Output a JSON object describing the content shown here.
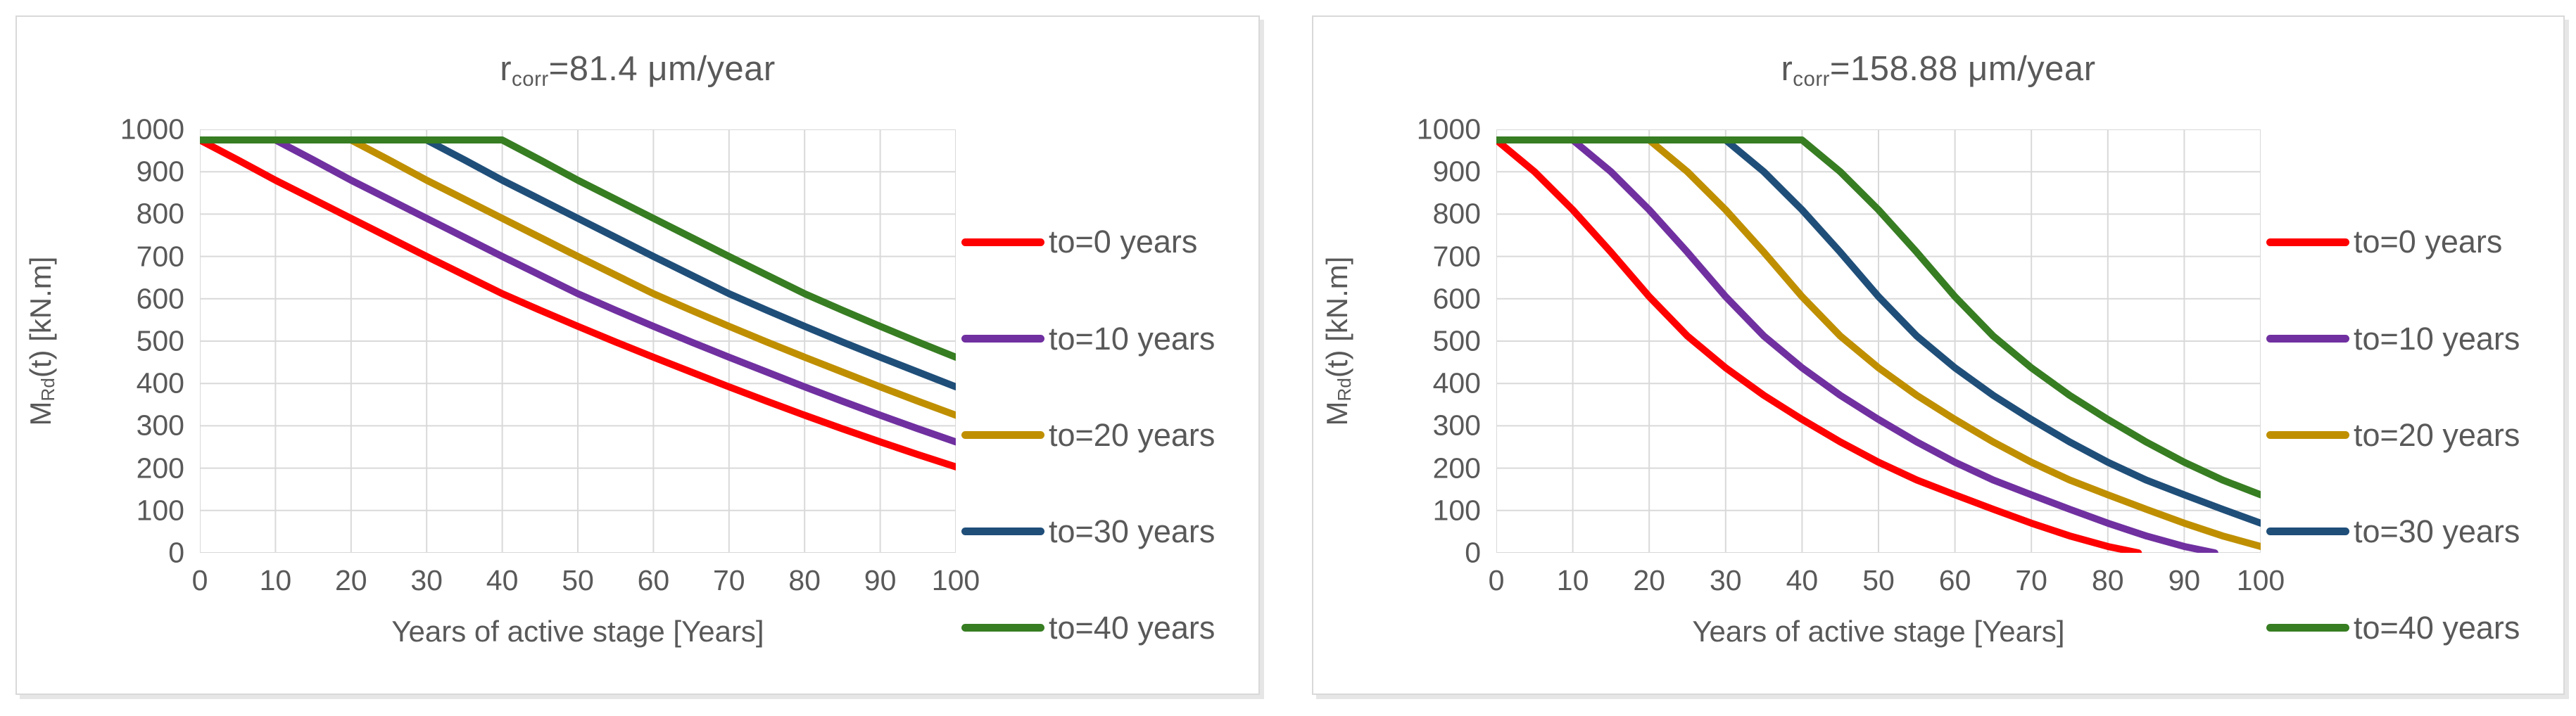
{
  "page": {
    "background": "#FFFFFF",
    "panel_border_color": "#D9D9D9"
  },
  "chart_data": [
    {
      "type": "line",
      "title": "r_corr=81.4 μm/year",
      "title_parts": {
        "base": "r",
        "sub": "corr",
        "rest": "=81.4 μm/year"
      },
      "xlabel": "Years of active stage [Years]",
      "ylabel": "M_Rd(t) [kN.m]",
      "ylabel_parts": {
        "base": "M",
        "sub": "Rd",
        "rest": "(t) [kN.m]"
      },
      "xlim": [
        0,
        100
      ],
      "ylim": [
        0,
        1000
      ],
      "x_ticks": [
        0,
        10,
        20,
        30,
        40,
        50,
        60,
        70,
        80,
        90,
        100
      ],
      "y_ticks": [
        0,
        100,
        200,
        300,
        400,
        500,
        600,
        700,
        800,
        900,
        1000
      ],
      "grid": true,
      "grid_color": "#D9D9D9",
      "axis_text_color": "#595959",
      "legend_position": "right",
      "series": [
        {
          "name": "to=0 years",
          "color": "#FF0000",
          "t0": 0,
          "points": [
            [
              0,
              975
            ],
            [
              5,
              928
            ],
            [
              10,
              880
            ],
            [
              15,
              835
            ],
            [
              20,
              790
            ],
            [
              25,
              745
            ],
            [
              30,
              700
            ],
            [
              35,
              656
            ],
            [
              40,
              612
            ],
            [
              45,
              573
            ],
            [
              50,
              535
            ],
            [
              55,
              498
            ],
            [
              60,
              462
            ],
            [
              65,
              427
            ],
            [
              70,
              392
            ],
            [
              75,
              358
            ],
            [
              80,
              325
            ],
            [
              85,
              293
            ],
            [
              90,
              262
            ],
            [
              95,
              232
            ],
            [
              100,
              203
            ]
          ]
        },
        {
          "name": "to=10 years",
          "color": "#7030A0",
          "t0": 10,
          "points": [
            [
              0,
              975
            ],
            [
              10,
              975
            ],
            [
              15,
              928
            ],
            [
              20,
              880
            ],
            [
              25,
              835
            ],
            [
              30,
              790
            ],
            [
              35,
              745
            ],
            [
              40,
              700
            ],
            [
              45,
              656
            ],
            [
              50,
              612
            ],
            [
              55,
              573
            ],
            [
              60,
              535
            ],
            [
              65,
              498
            ],
            [
              70,
              462
            ],
            [
              75,
              427
            ],
            [
              80,
              392
            ],
            [
              85,
              358
            ],
            [
              90,
              325
            ],
            [
              95,
              293
            ],
            [
              100,
              262
            ]
          ]
        },
        {
          "name": "to=20 years",
          "color": "#BF8F00",
          "t0": 20,
          "points": [
            [
              0,
              975
            ],
            [
              20,
              975
            ],
            [
              25,
              928
            ],
            [
              30,
              880
            ],
            [
              35,
              835
            ],
            [
              40,
              790
            ],
            [
              45,
              745
            ],
            [
              50,
              700
            ],
            [
              55,
              656
            ],
            [
              60,
              612
            ],
            [
              65,
              573
            ],
            [
              70,
              535
            ],
            [
              75,
              498
            ],
            [
              80,
              462
            ],
            [
              85,
              427
            ],
            [
              90,
              392
            ],
            [
              95,
              358
            ],
            [
              100,
              325
            ]
          ]
        },
        {
          "name": "to=30 years",
          "color": "#1F4E79",
          "t0": 30,
          "points": [
            [
              0,
              975
            ],
            [
              30,
              975
            ],
            [
              35,
              928
            ],
            [
              40,
              880
            ],
            [
              45,
              835
            ],
            [
              50,
              790
            ],
            [
              55,
              745
            ],
            [
              60,
              700
            ],
            [
              65,
              656
            ],
            [
              70,
              612
            ],
            [
              75,
              573
            ],
            [
              80,
              535
            ],
            [
              85,
              498
            ],
            [
              90,
              462
            ],
            [
              95,
              427
            ],
            [
              100,
              392
            ]
          ]
        },
        {
          "name": "to=40 years",
          "color": "#377D22",
          "t0": 40,
          "points": [
            [
              0,
              975
            ],
            [
              40,
              975
            ],
            [
              45,
              928
            ],
            [
              50,
              880
            ],
            [
              55,
              835
            ],
            [
              60,
              790
            ],
            [
              65,
              745
            ],
            [
              70,
              700
            ],
            [
              75,
              656
            ],
            [
              80,
              612
            ],
            [
              85,
              573
            ],
            [
              90,
              535
            ],
            [
              95,
              498
            ],
            [
              100,
              462
            ]
          ]
        }
      ]
    },
    {
      "type": "line",
      "title": "r_corr=158.88 μm/year",
      "title_parts": {
        "base": "r",
        "sub": "corr",
        "rest": "=158.88 μm/year"
      },
      "xlabel": "Years of active stage [Years]",
      "ylabel": "M_Rd(t) [kN.m]",
      "ylabel_parts": {
        "base": "M",
        "sub": "Rd",
        "rest": "(t) [kN.m]"
      },
      "xlim": [
        0,
        100
      ],
      "ylim": [
        0,
        1000
      ],
      "x_ticks": [
        0,
        10,
        20,
        30,
        40,
        50,
        60,
        70,
        80,
        90,
        100
      ],
      "y_ticks": [
        0,
        100,
        200,
        300,
        400,
        500,
        600,
        700,
        800,
        900,
        1000
      ],
      "grid": true,
      "grid_color": "#D9D9D9",
      "axis_text_color": "#595959",
      "legend_position": "right",
      "series": [
        {
          "name": "to=0 years",
          "color": "#FF0000",
          "t0": 0,
          "points": [
            [
              0,
              975
            ],
            [
              5,
              900
            ],
            [
              10,
              810
            ],
            [
              15,
              710
            ],
            [
              20,
              605
            ],
            [
              25,
              512
            ],
            [
              30,
              437
            ],
            [
              35,
              372
            ],
            [
              40,
              315
            ],
            [
              45,
              262
            ],
            [
              50,
              214
            ],
            [
              55,
              172
            ],
            [
              60,
              137
            ],
            [
              65,
              103
            ],
            [
              70,
              70
            ],
            [
              75,
              40
            ],
            [
              80,
              15
            ],
            [
              84,
              0
            ]
          ]
        },
        {
          "name": "to=10 years",
          "color": "#7030A0",
          "t0": 10,
          "points": [
            [
              0,
              975
            ],
            [
              10,
              975
            ],
            [
              15,
              900
            ],
            [
              20,
              810
            ],
            [
              25,
              710
            ],
            [
              30,
              605
            ],
            [
              35,
              512
            ],
            [
              40,
              437
            ],
            [
              45,
              372
            ],
            [
              50,
              315
            ],
            [
              55,
              262
            ],
            [
              60,
              214
            ],
            [
              65,
              172
            ],
            [
              70,
              137
            ],
            [
              75,
              103
            ],
            [
              80,
              70
            ],
            [
              85,
              40
            ],
            [
              90,
              15
            ],
            [
              94,
              0
            ]
          ]
        },
        {
          "name": "to=20 years",
          "color": "#BF8F00",
          "t0": 20,
          "points": [
            [
              0,
              975
            ],
            [
              20,
              975
            ],
            [
              25,
              900
            ],
            [
              30,
              810
            ],
            [
              35,
              710
            ],
            [
              40,
              605
            ],
            [
              45,
              512
            ],
            [
              50,
              437
            ],
            [
              55,
              372
            ],
            [
              60,
              315
            ],
            [
              65,
              262
            ],
            [
              70,
              214
            ],
            [
              75,
              172
            ],
            [
              80,
              137
            ],
            [
              85,
              103
            ],
            [
              90,
              70
            ],
            [
              95,
              40
            ],
            [
              100,
              15
            ]
          ]
        },
        {
          "name": "to=30 years",
          "color": "#1F4E79",
          "t0": 30,
          "points": [
            [
              0,
              975
            ],
            [
              30,
              975
            ],
            [
              35,
              900
            ],
            [
              40,
              810
            ],
            [
              45,
              710
            ],
            [
              50,
              605
            ],
            [
              55,
              512
            ],
            [
              60,
              437
            ],
            [
              65,
              372
            ],
            [
              70,
              315
            ],
            [
              75,
              262
            ],
            [
              80,
              214
            ],
            [
              85,
              172
            ],
            [
              90,
              137
            ],
            [
              95,
              103
            ],
            [
              100,
              70
            ]
          ]
        },
        {
          "name": "to=40 years",
          "color": "#377D22",
          "t0": 40,
          "points": [
            [
              0,
              975
            ],
            [
              40,
              975
            ],
            [
              45,
              900
            ],
            [
              50,
              810
            ],
            [
              55,
              710
            ],
            [
              60,
              605
            ],
            [
              65,
              512
            ],
            [
              70,
              437
            ],
            [
              75,
              372
            ],
            [
              80,
              315
            ],
            [
              85,
              262
            ],
            [
              90,
              214
            ],
            [
              95,
              172
            ],
            [
              100,
              137
            ]
          ]
        }
      ]
    }
  ]
}
